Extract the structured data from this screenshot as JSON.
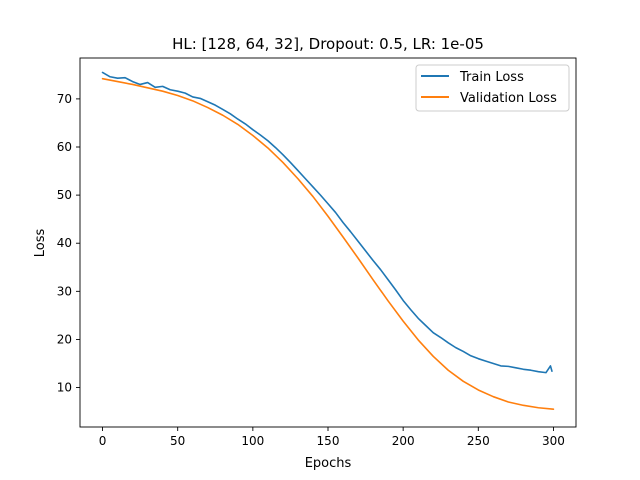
{
  "chart_data": {
    "type": "line",
    "title": "HL: [128, 64, 32], Dropout: 0.5, LR: 1e-05",
    "xlabel": "Epochs",
    "ylabel": "Loss",
    "xlim": [
      -15,
      315
    ],
    "ylim": [
      1.8,
      78.5
    ],
    "xticks": [
      0,
      50,
      100,
      150,
      200,
      250,
      300
    ],
    "yticks": [
      10,
      20,
      30,
      40,
      50,
      60,
      70
    ],
    "grid": false,
    "legend_position": "top-right",
    "series": [
      {
        "name": "Train Loss",
        "color": "#1f77b4",
        "x": [
          0,
          5,
          10,
          15,
          20,
          25,
          30,
          35,
          40,
          45,
          50,
          55,
          60,
          65,
          70,
          75,
          80,
          85,
          90,
          95,
          100,
          105,
          110,
          115,
          120,
          125,
          130,
          135,
          140,
          145,
          150,
          155,
          160,
          165,
          170,
          175,
          180,
          185,
          190,
          195,
          200,
          205,
          210,
          215,
          220,
          225,
          230,
          235,
          240,
          245,
          250,
          255,
          260,
          265,
          270,
          275,
          280,
          285,
          290,
          295,
          298,
          299
        ],
        "y": [
          75.5,
          74.6,
          74.3,
          74.4,
          73.6,
          73.0,
          73.4,
          72.4,
          72.6,
          71.9,
          71.6,
          71.2,
          70.4,
          70.1,
          69.4,
          68.7,
          67.8,
          66.9,
          65.8,
          64.8,
          63.6,
          62.5,
          61.3,
          59.9,
          58.4,
          56.8,
          55.1,
          53.4,
          51.7,
          50.0,
          48.2,
          46.4,
          44.3,
          42.4,
          40.4,
          38.4,
          36.4,
          34.5,
          32.4,
          30.3,
          28.1,
          26.2,
          24.4,
          22.9,
          21.4,
          20.4,
          19.3,
          18.3,
          17.5,
          16.6,
          16.0,
          15.5,
          15.0,
          14.5,
          14.4,
          14.1,
          13.8,
          13.6,
          13.3,
          13.1,
          14.5,
          13.4
        ]
      },
      {
        "name": "Validation Loss",
        "color": "#ff7f0e",
        "x": [
          0,
          10,
          20,
          30,
          40,
          50,
          60,
          70,
          80,
          90,
          100,
          110,
          120,
          130,
          140,
          150,
          160,
          170,
          180,
          190,
          200,
          210,
          220,
          230,
          240,
          250,
          260,
          270,
          280,
          290,
          300
        ],
        "y": [
          74.2,
          73.6,
          73.0,
          72.3,
          71.6,
          70.7,
          69.6,
          68.2,
          66.6,
          64.7,
          62.4,
          59.8,
          56.8,
          53.4,
          49.7,
          45.6,
          41.3,
          36.9,
          32.4,
          28.0,
          23.8,
          19.9,
          16.5,
          13.6,
          11.3,
          9.5,
          8.1,
          7.0,
          6.3,
          5.8,
          5.5
        ]
      }
    ]
  }
}
